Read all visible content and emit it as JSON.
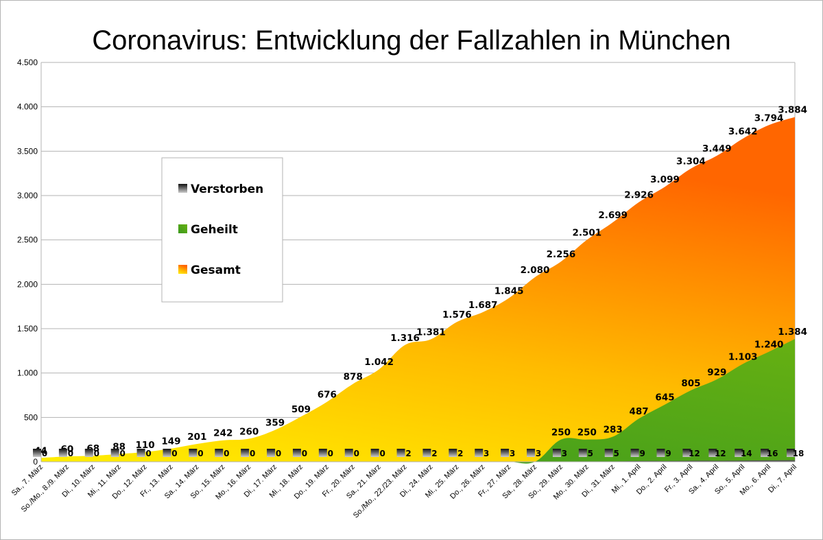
{
  "chart_data": {
    "type": "area",
    "title": "Coronavirus: Entwicklung der Fallzahlen in München",
    "ylim": [
      0,
      4500
    ],
    "y_ticks": [
      0,
      500,
      1000,
      1500,
      2000,
      2500,
      3000,
      3500,
      4000,
      4500
    ],
    "y_tick_labels": [
      "0",
      "500",
      "1.000",
      "1.500",
      "2.000",
      "2.500",
      "3.000",
      "3.500",
      "4.000",
      "4.500"
    ],
    "grid": true,
    "legend": "left",
    "categories": [
      "Sa., 7. März",
      "So./Mo., 8./9. März",
      "Di., 10. März",
      "Mi., 11. März",
      "Do., 12. März",
      "Fr., 13. März",
      "Sa., 14. März",
      "So., 15. März",
      "Mo., 16. März",
      "Di., 17. März",
      "Mi., 18. März",
      "Do., 19. März",
      "Fr., 20. März",
      "Sa., 21. März",
      "So./Mo., 22./23. März",
      "Di., 24. März",
      "Mi., 25. März",
      "Do., 26. März",
      "Fr., 27. März",
      "Sa., 28. März",
      "So., 29. März",
      "Mo., 30. März",
      "Di., 31. März",
      "Mi., 1. April",
      "Do., 2. April",
      "Fr., 3. April",
      "Sa., 4. April",
      "So., 5. April",
      "Mo., 6. April",
      "Di., 7. April"
    ],
    "series": [
      {
        "name": "Gesamt",
        "colors": [
          "#ffee00",
          "#ff6600"
        ],
        "values": [
          44,
          60,
          68,
          88,
          110,
          149,
          201,
          242,
          260,
          359,
          509,
          676,
          878,
          1042,
          1316,
          1381,
          1576,
          1687,
          1845,
          2080,
          2256,
          2501,
          2699,
          2926,
          3099,
          3304,
          3449,
          3642,
          3794,
          3884
        ],
        "labels": [
          "44",
          "60",
          "68",
          "88",
          "110",
          "149",
          "201",
          "242",
          "260",
          "359",
          "509",
          "676",
          "878",
          "1.042",
          "1.316",
          "1.381",
          "1.576",
          "1.687",
          "1.845",
          "2.080",
          "2.256",
          "2.501",
          "2.699",
          "2.926",
          "3.099",
          "3.304",
          "3.449",
          "3.642",
          "3.794",
          "3.884"
        ]
      },
      {
        "name": "Geheilt",
        "colors": [
          "#3c9a1e",
          "#66b012"
        ],
        "values": [
          0,
          0,
          0,
          0,
          0,
          0,
          0,
          0,
          0,
          0,
          0,
          0,
          0,
          0,
          0,
          0,
          0,
          0,
          0,
          0,
          250,
          250,
          283,
          487,
          645,
          805,
          929,
          1103,
          1240,
          1384
        ],
        "labels": [
          "250",
          "250",
          "283",
          "487",
          "645",
          "805",
          "929",
          "1.103",
          "1.240",
          "1.384"
        ],
        "label_start_index": 20
      },
      {
        "name": "Verstorben",
        "colors": [
          "#111111",
          "#cccccc"
        ],
        "values": [
          0,
          0,
          0,
          0,
          0,
          0,
          0,
          0,
          0,
          0,
          0,
          0,
          0,
          0,
          2,
          2,
          2,
          3,
          3,
          3,
          3,
          5,
          5,
          9,
          9,
          12,
          12,
          14,
          16,
          18
        ],
        "labels": [
          "0",
          "0",
          "0",
          "0",
          "0",
          "0",
          "0",
          "0",
          "0",
          "0",
          "0",
          "0",
          "0",
          "0",
          "2",
          "2",
          "2",
          "3",
          "3",
          "3",
          "3",
          "5",
          "5",
          "9",
          "9",
          "12",
          "12",
          "14",
          "16",
          "18"
        ]
      }
    ]
  }
}
